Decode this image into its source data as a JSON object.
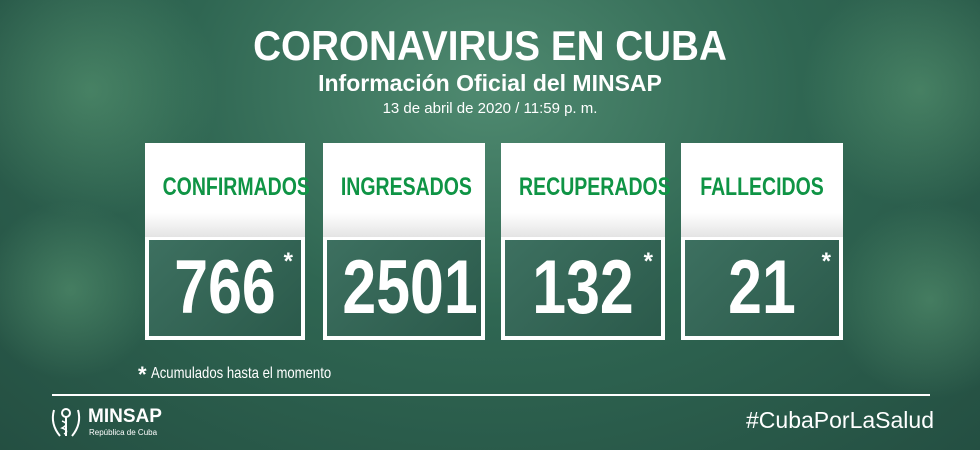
{
  "header": {
    "title": "CORONAVIRUS EN CUBA",
    "subtitle": "Información Oficial del MINSAP",
    "datetime": "13 de abril de 2020 / 11:59 p. m."
  },
  "cards": [
    {
      "label": "CONFIRMADOS",
      "value": "766",
      "marker": "*"
    },
    {
      "label": "INGRESADOS",
      "value": "2501",
      "marker": ""
    },
    {
      "label": "RECUPERADOS",
      "value": "132",
      "marker": "*"
    },
    {
      "label": "FALLECIDOS",
      "value": "21",
      "marker": "*"
    }
  ],
  "footnote": {
    "marker": "*",
    "text": "Acumulados hasta el momento"
  },
  "footer": {
    "brand": "MINSAP",
    "brand_sub": "República de Cuba",
    "hashtag": "#CubaPorLaSalud"
  },
  "colors": {
    "label_green": "#0f9445",
    "background": "#2f6652"
  }
}
